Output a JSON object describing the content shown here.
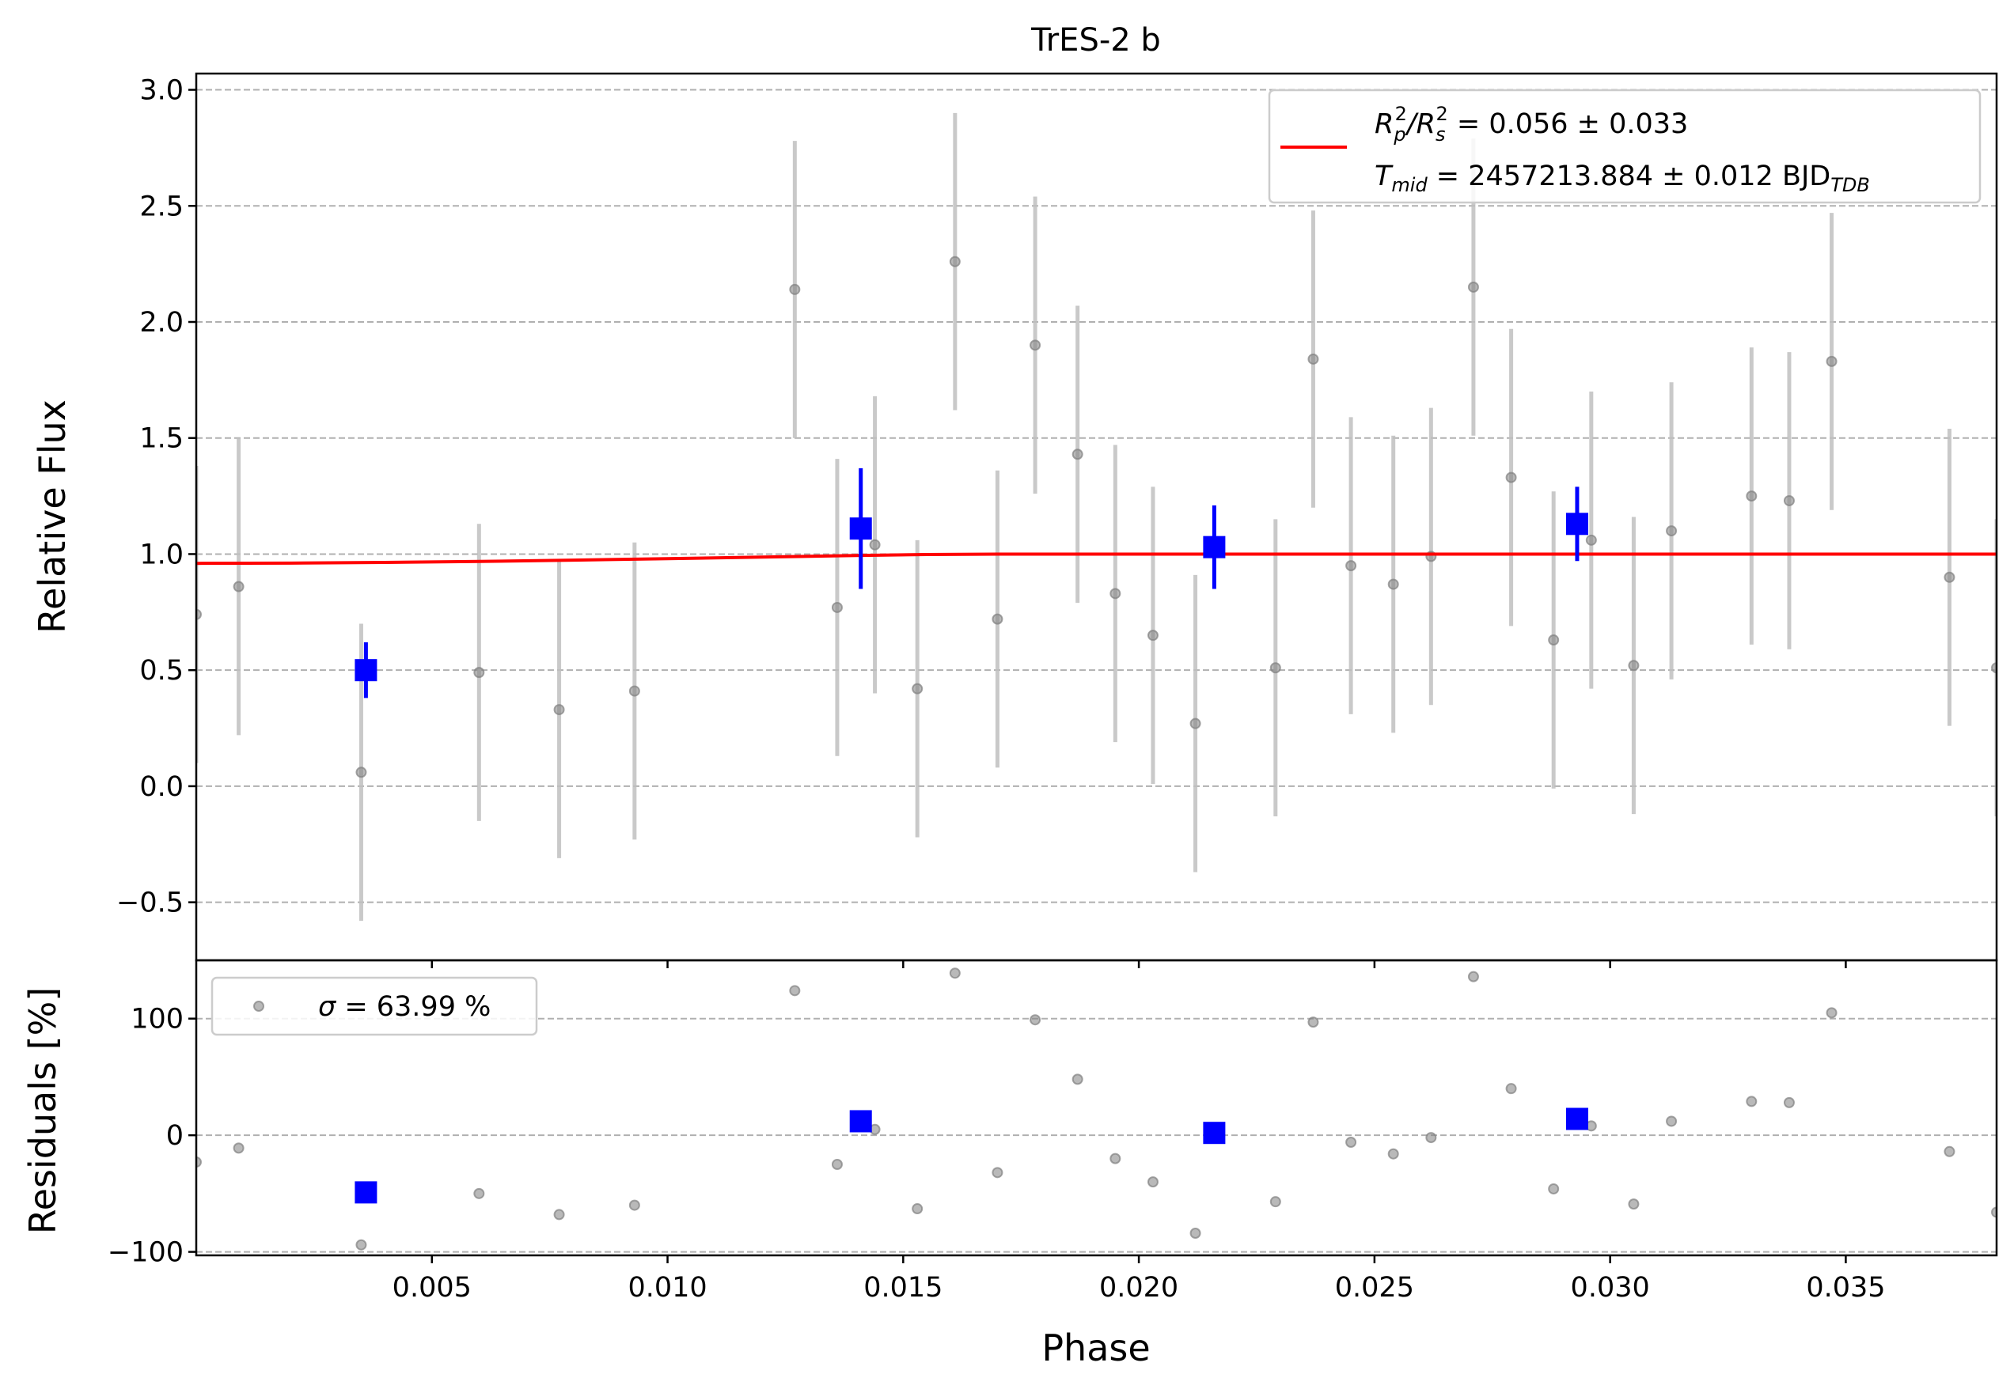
{
  "chart_data": [
    {
      "type": "scatter",
      "title": "TrES-2 b",
      "ylabel": "Relative Flux",
      "xlim": [
        0.0,
        0.0382
      ],
      "ylim": [
        -0.75,
        3.07
      ],
      "yticks": [
        -0.5,
        0.0,
        0.5,
        1.0,
        1.5,
        2.0,
        2.5,
        3.0
      ],
      "ytick_labels": [
        "−0.5",
        "0.0",
        "0.5",
        "1.0",
        "1.5",
        "2.0",
        "2.5",
        "3.0"
      ],
      "grid": "y-dashed",
      "legend_position": "top-right",
      "legend": {
        "model_line1_main": "R",
        "model_line1_sub1": "p",
        "model_line1_sup1": "2",
        "model_line1_mid": "/R",
        "model_line1_sub2": "s",
        "model_line1_sup2": "2",
        "model_line1_tail": " = 0.056 ± 0.033",
        "model_line2_main": "T",
        "model_line2_sub": "mid",
        "model_line2_tail": " = 2457213.884 ± 0.012 BJD",
        "model_line2_unit_sub": "TDB"
      },
      "series": [
        {
          "role": "raw-data",
          "color": "#808080",
          "x": [
            0.0,
            0.0009,
            0.0035,
            0.006,
            0.0077,
            0.0093,
            0.0127,
            0.0136,
            0.0144,
            0.0153,
            0.0161,
            0.017,
            0.0178,
            0.0187,
            0.0195,
            0.0203,
            0.0212,
            0.0229,
            0.0237,
            0.0245,
            0.0254,
            0.0262,
            0.0271,
            0.0279,
            0.0288,
            0.0296,
            0.0305,
            0.0313,
            0.033,
            0.0338,
            0.0347,
            0.0372,
            0.0382
          ],
          "y": [
            0.74,
            0.86,
            0.06,
            0.49,
            0.33,
            0.41,
            2.14,
            0.77,
            1.04,
            0.42,
            2.26,
            0.72,
            1.9,
            1.43,
            0.83,
            0.65,
            0.27,
            0.51,
            1.84,
            0.95,
            0.87,
            0.99,
            2.15,
            1.33,
            0.63,
            1.06,
            0.52,
            1.1,
            1.25,
            1.23,
            1.83,
            0.9,
            0.51
          ],
          "yerr": [
            0.64,
            0.64,
            0.64,
            0.64,
            0.64,
            0.64,
            0.64,
            0.64,
            0.64,
            0.64,
            0.64,
            0.64,
            0.64,
            0.64,
            0.64,
            0.64,
            0.64,
            0.64,
            0.64,
            0.64,
            0.64,
            0.64,
            0.64,
            0.64,
            0.64,
            0.64,
            0.64,
            0.64,
            0.64,
            0.64,
            0.64,
            0.64,
            0.64
          ]
        },
        {
          "role": "binned-data",
          "color": "#0000ff",
          "x": [
            0.0036,
            0.0141,
            0.0216,
            0.0293
          ],
          "y": [
            0.5,
            1.11,
            1.03,
            1.13
          ],
          "yerr": [
            0.12,
            0.26,
            0.18,
            0.16
          ]
        },
        {
          "role": "model",
          "color": "#ff0000",
          "x": [
            0.0,
            0.002,
            0.004,
            0.006,
            0.008,
            0.01,
            0.012,
            0.014,
            0.0155,
            0.017,
            0.02,
            0.025,
            0.03,
            0.035,
            0.0382
          ],
          "y": [
            0.96,
            0.961,
            0.964,
            0.968,
            0.974,
            0.98,
            0.987,
            0.994,
            0.998,
            1.0,
            1.0,
            1.0,
            1.0,
            1.0,
            1.0
          ]
        }
      ]
    },
    {
      "type": "scatter",
      "xlabel": "Phase",
      "ylabel": "Residuals [%]",
      "xlim": [
        0.0,
        0.0382
      ],
      "ylim": [
        -103,
        150
      ],
      "yticks": [
        -100,
        0,
        100
      ],
      "ytick_labels": [
        "−100",
        "0",
        "100"
      ],
      "xticks": [
        0.005,
        0.01,
        0.015,
        0.02,
        0.025,
        0.03,
        0.035
      ],
      "xtick_labels": [
        "0.005",
        "0.010",
        "0.015",
        "0.020",
        "0.025",
        "0.030",
        "0.035"
      ],
      "grid": "y-dashed",
      "legend_position": "top-left",
      "legend": {
        "sigma_symbol": "σ",
        "sigma_text": " = 63.99 %"
      },
      "series": [
        {
          "role": "raw-residuals",
          "color": "#808080",
          "x": [
            0.0,
            0.0009,
            0.0035,
            0.006,
            0.0077,
            0.0093,
            0.0127,
            0.0136,
            0.0144,
            0.0153,
            0.0161,
            0.017,
            0.0178,
            0.0187,
            0.0195,
            0.0203,
            0.0212,
            0.0229,
            0.0237,
            0.0245,
            0.0254,
            0.0262,
            0.0271,
            0.0279,
            0.0288,
            0.0296,
            0.0305,
            0.0313,
            0.033,
            0.0338,
            0.0347,
            0.0372,
            0.0382
          ],
          "y": [
            -23,
            -11,
            -94,
            -50,
            -68,
            -60,
            124,
            -25,
            5,
            -63,
            139,
            -32,
            99,
            48,
            -20,
            -40,
            -84,
            -57,
            97,
            -6,
            -16,
            -2,
            136,
            40,
            -46,
            8,
            -59,
            12,
            29,
            28,
            105,
            -14,
            -66
          ]
        },
        {
          "role": "binned-residuals",
          "color": "#0000ff",
          "x": [
            0.0036,
            0.0141,
            0.0216,
            0.0293
          ],
          "y": [
            -49,
            12,
            2,
            14
          ]
        }
      ]
    }
  ]
}
